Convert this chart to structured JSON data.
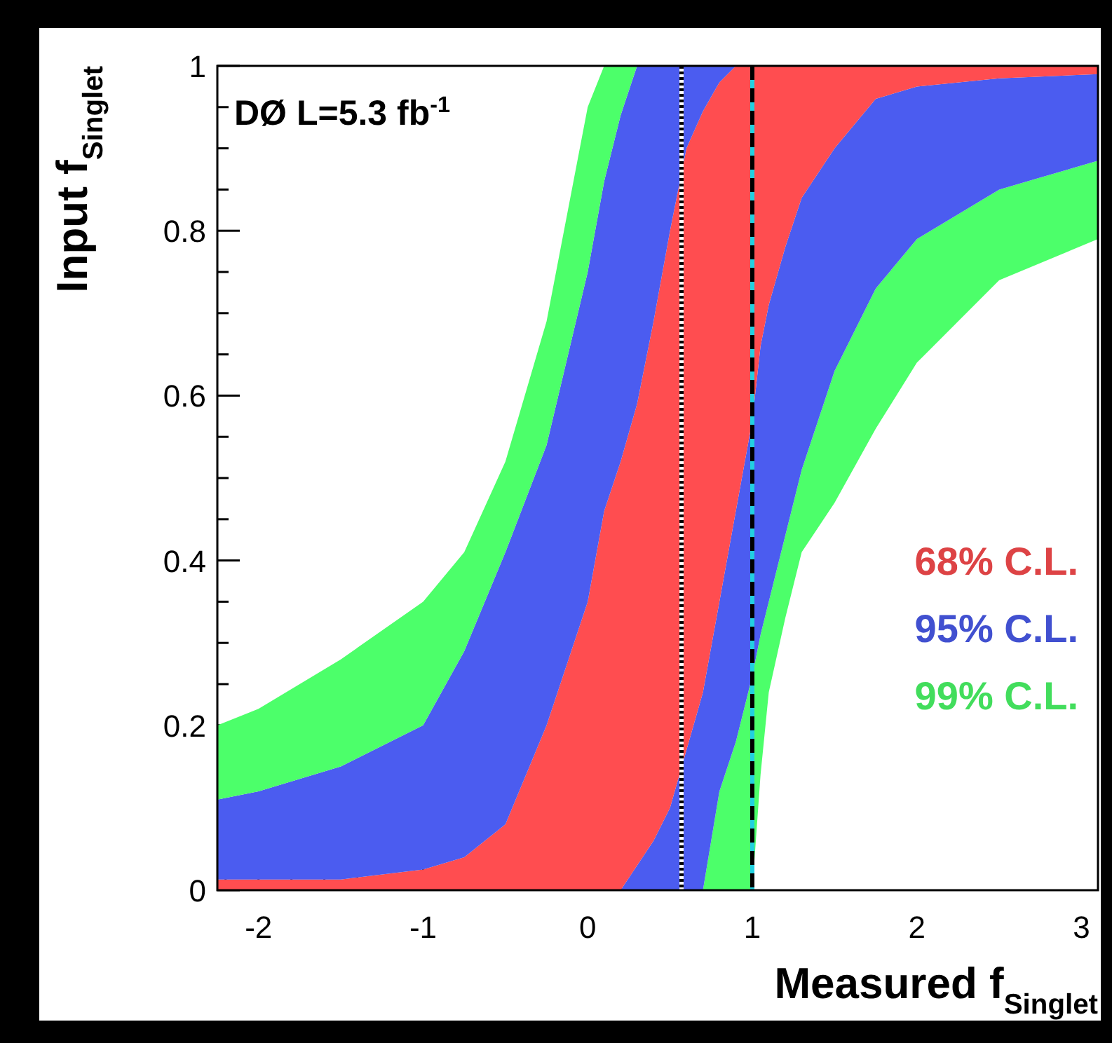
{
  "chart_data": {
    "type": "area",
    "stacked": true,
    "xlabel": "Measured f$_{Singlet}$",
    "ylabel": "Input f$_{Singlet}$",
    "annotations": [
      "DØ L=5.3 fb$^{-1}$"
    ],
    "xlim": [
      -2.25,
      3.1
    ],
    "ylim": [
      0,
      1
    ],
    "xticks": [
      {
        "value": -2.2,
        "label": null
      },
      -2,
      {
        "value": -1.8,
        "label": null
      },
      {
        "value": -1.6,
        "label": null
      },
      {
        "value": -1.4,
        "label": null
      },
      {
        "value": -1.2,
        "label": null
      },
      -1,
      {
        "value": -0.8,
        "label": null
      },
      {
        "value": -0.6,
        "label": null
      },
      {
        "value": -0.4,
        "label": null
      },
      {
        "value": -0.2,
        "label": null
      },
      0,
      {
        "value": 0.2,
        "label": null
      },
      {
        "value": 0.4,
        "label": null
      },
      {
        "value": 0.6,
        "label": null
      },
      {
        "value": 0.8,
        "label": null
      },
      1,
      {
        "value": 1.2,
        "label": null
      },
      {
        "value": 1.4,
        "label": null
      },
      {
        "value": 1.6,
        "label": null
      },
      {
        "value": 1.8,
        "label": null
      },
      2,
      {
        "value": 2.2,
        "label": null
      },
      {
        "value": 2.4,
        "label": null
      },
      {
        "value": 2.6,
        "label": null
      },
      {
        "value": 2.8,
        "label": null
      },
      3
    ],
    "yticks": [
      0,
      {
        "value": 0.05,
        "label": null
      },
      {
        "value": 0.1,
        "label": null
      },
      {
        "value": 0.15,
        "label": null
      },
      0.2,
      {
        "value": 0.25,
        "label": null
      },
      {
        "value": 0.3,
        "label": null
      },
      {
        "value": 0.35,
        "label": null
      },
      0.4,
      {
        "value": 0.45,
        "label": null
      },
      {
        "value": 0.5,
        "label": null
      },
      {
        "value": 0.55,
        "label": null
      },
      0.6,
      {
        "value": 0.65,
        "label": null
      },
      {
        "value": 0.7,
        "label": null
      },
      {
        "value": 0.75,
        "label": null
      },
      0.8,
      {
        "value": 0.85,
        "label": null
      },
      {
        "value": 0.9,
        "label": null
      },
      {
        "value": 0.95,
        "label": null
      },
      1
    ],
    "legend": "right",
    "x": [
      -2.25,
      -2,
      -1.5,
      -1,
      -0.75,
      -0.5,
      -0.25,
      0,
      0.1,
      0.2,
      0.3,
      0.4,
      0.5,
      0.6,
      0.7,
      0.8,
      0.9,
      1,
      1.05,
      1.1,
      1.2,
      1.3,
      1.5,
      1.75,
      2,
      2.5,
      3.1
    ],
    "series": [
      {
        "color": "#ffffff",
        "values": [
          0,
          0,
          0,
          0,
          0,
          0,
          0,
          0,
          0,
          0,
          0,
          0,
          0,
          0,
          0,
          0,
          0,
          0,
          0.14,
          0.24,
          0.33,
          0.41,
          0.47,
          0.56,
          0.64,
          0.74,
          0.79
        ]
      },
      {
        "name": "99% C.L.",
        "color": "#4cff6a",
        "values": [
          0,
          0,
          0,
          0,
          0,
          0,
          0,
          0,
          0,
          0,
          0,
          0,
          0,
          0,
          0,
          0.12,
          0.18,
          0.26,
          0.17,
          0.11,
          0.1,
          0.1,
          0.16,
          0.17,
          0.15,
          0.11,
          0.095
        ]
      },
      {
        "name": "95% C.L.",
        "color": "#4b5cf0",
        "values": [
          0,
          0,
          0,
          0,
          0,
          0,
          0,
          0,
          0,
          0,
          0.03,
          0.06,
          0.1,
          0.17,
          0.24,
          0.23,
          0.28,
          0.31,
          0.35,
          0.36,
          0.35,
          0.33,
          0.27,
          0.23,
          0.185,
          0.135,
          0.105
        ]
      },
      {
        "name": "68% C.L.",
        "color": "#ff4d50",
        "values": [
          0.013,
          0.013,
          0.013,
          0.025,
          0.04,
          0.08,
          0.2,
          0.35,
          0.46,
          0.52,
          0.56,
          0.63,
          0.7,
          0.73,
          0.705,
          0.63,
          0.54,
          0.43,
          0.34,
          0.29,
          0.22,
          0.16,
          0.1,
          0.04,
          0.025,
          0.015,
          0.01
        ]
      },
      {
        "color": "#4b5cf0",
        "values": [
          0.097,
          0.107,
          0.137,
          0.175,
          0.25,
          0.33,
          0.34,
          0.4,
          0.4,
          0.42,
          0.41,
          0.31,
          0.2,
          0.1,
          0.055,
          0.02,
          0,
          0,
          0,
          0,
          0,
          0,
          0,
          0,
          0,
          0,
          0
        ]
      },
      {
        "color": "#4cff6a",
        "values": [
          0.09,
          0.1,
          0.13,
          0.15,
          0.12,
          0.11,
          0.15,
          0.2,
          0.14,
          0.06,
          0,
          0,
          0,
          0,
          0,
          0,
          0,
          0,
          0,
          0,
          0,
          0,
          0,
          0,
          0,
          0,
          0
        ]
      }
    ],
    "ref_lines": [
      {
        "axis": "x",
        "value": 0.57,
        "color": "#ffffff"
      },
      {
        "axis": "x",
        "value": 0.57,
        "color": "#000000",
        "line_style": "dotted"
      },
      {
        "axis": "x",
        "value": 1,
        "color": "#22d0e0"
      },
      {
        "axis": "x",
        "value": 1,
        "color": "#000000",
        "line_style": "dashed"
      }
    ]
  }
}
